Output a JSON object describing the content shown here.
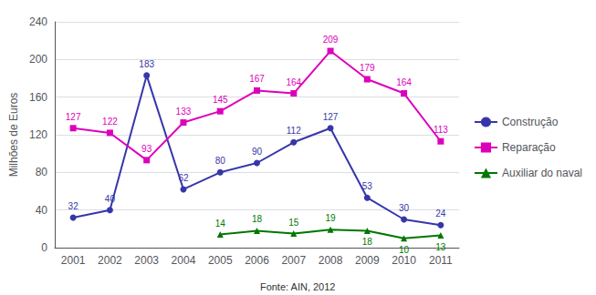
{
  "chart_data": {
    "type": "line",
    "categories": [
      "2001",
      "2002",
      "2003",
      "2004",
      "2005",
      "2006",
      "2007",
      "2008",
      "2009",
      "2010",
      "2011"
    ],
    "series": [
      {
        "name": "Construção",
        "color": "#3636aa",
        "marker": "circle",
        "values": [
          32,
          40,
          183,
          62,
          80,
          90,
          112,
          127,
          53,
          30,
          24
        ]
      },
      {
        "name": "Reparação",
        "color": "#dd00bb",
        "marker": "square",
        "values": [
          127,
          122,
          93,
          133,
          145,
          167,
          164,
          209,
          179,
          164,
          113
        ]
      },
      {
        "name": "Auxiliar do naval",
        "color": "#007700",
        "marker": "triangle",
        "values": [
          null,
          null,
          null,
          null,
          14,
          18,
          15,
          19,
          18,
          10,
          13
        ]
      }
    ],
    "ylabel": "Milhões de Euros",
    "annotations": [
      "Fonte: AIN, 2012"
    ],
    "ylim": [
      0,
      240
    ],
    "yticks": [
      0,
      40,
      80,
      120,
      160,
      200,
      240
    ],
    "grid": true,
    "legend": "right",
    "data_labels": true
  }
}
